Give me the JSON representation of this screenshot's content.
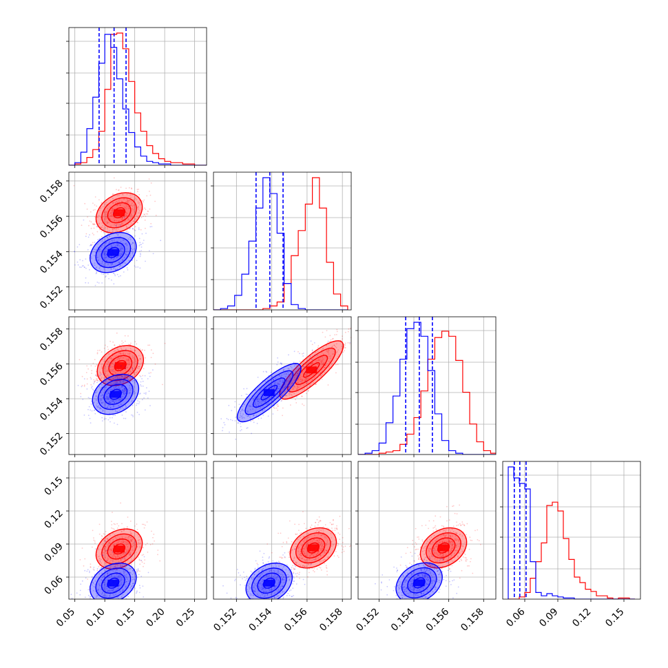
{
  "chart_data": {
    "type": "corner",
    "grid": true,
    "colors": {
      "model_a": "#ff0000",
      "model_b": "#0000ff"
    },
    "n_params": 4,
    "params": [
      {
        "range": [
          0.04,
          0.27
        ],
        "ticks": [
          0.05,
          0.1,
          0.15,
          0.2,
          0.25
        ],
        "tick_labels": [
          "0.05",
          "0.10",
          "0.15",
          "0.20",
          "0.25"
        ]
      },
      {
        "range": [
          0.1507,
          0.1585
        ],
        "ticks": [
          0.152,
          0.154,
          0.156,
          0.158
        ],
        "tick_labels": [
          "0.152",
          "0.154",
          "0.156",
          "0.158"
        ]
      },
      {
        "range": [
          0.1508,
          0.1587
        ],
        "ticks": [
          0.152,
          0.154,
          0.156,
          0.158
        ],
        "tick_labels": [
          "0.152",
          "0.154",
          "0.156",
          "0.158"
        ]
      },
      {
        "range": [
          0.04,
          0.165
        ],
        "ticks": [
          0.06,
          0.09,
          0.12,
          0.15
        ],
        "tick_labels": [
          "0.06",
          "0.09",
          "0.12",
          "0.15"
        ]
      }
    ],
    "series": [
      {
        "color": "#ff0000",
        "histograms": [
          {
            "edges": [
              0.04,
              0.05,
              0.06,
              0.07,
              0.08,
              0.09,
              0.1,
              0.11,
              0.12,
              0.13,
              0.14,
              0.15,
              0.16,
              0.17,
              0.18,
              0.19,
              0.2,
              0.21,
              0.22,
              0.23,
              0.24,
              0.25,
              0.26,
              0.27
            ],
            "counts": [
              0,
              1,
              2,
              6,
              12,
              26,
              58,
              100,
              101,
              89,
              64,
              40,
              26,
              15,
              9,
              5,
              3,
              2,
              2,
              1,
              1,
              0,
              0
            ]
          },
          {
            "edges": [
              0.1507,
              0.1511,
              0.1515,
              0.1519,
              0.1523,
              0.1527,
              0.1531,
              0.1535,
              0.1539,
              0.1543,
              0.1547,
              0.1551,
              0.1555,
              0.1559,
              0.1563,
              0.1567,
              0.1571,
              0.1575,
              0.1579,
              0.1583
            ],
            "counts": [
              0,
              0,
              0,
              0,
              0,
              0,
              0,
              1,
              3,
              6,
              20,
              41,
              60,
              80,
              100,
              77,
              36,
              12,
              3
            ]
          },
          {
            "edges": [
              0.1508,
              0.1512,
              0.1516,
              0.152,
              0.1524,
              0.1528,
              0.1532,
              0.1536,
              0.154,
              0.1544,
              0.1548,
              0.1552,
              0.1556,
              0.156,
              0.1564,
              0.1568,
              0.1572,
              0.1576,
              0.158,
              0.1584,
              0.1588
            ],
            "counts": [
              0,
              0,
              0,
              1,
              2,
              3,
              8,
              16,
              29,
              50,
              75,
              92,
              97,
              93,
              74,
              49,
              24,
              10,
              3,
              1
            ]
          },
          {
            "edges": [
              0.045,
              0.05,
              0.055,
              0.06,
              0.065,
              0.07,
              0.075,
              0.08,
              0.085,
              0.09,
              0.095,
              0.1,
              0.105,
              0.11,
              0.115,
              0.12,
              0.125,
              0.13,
              0.135,
              0.14,
              0.145,
              0.15,
              0.155,
              0.16
            ],
            "counts": [
              0,
              0,
              2,
              6,
              19,
              34,
              51,
              85,
              88,
              80,
              55,
              36,
              20,
              15,
              9,
              7,
              3,
              3,
              1,
              0,
              1,
              1,
              0
            ]
          }
        ],
        "contours": [
          {
            "x": 1,
            "y": 0,
            "cx": 0.124,
            "cy": 0.1562,
            "r_inner": 0.26,
            "r_outer": 0.9
          },
          {
            "x": 2,
            "y": 0,
            "cx": 0.126,
            "cy": 0.1559,
            "r_inner": 0.26,
            "r_outer": 0.9
          },
          {
            "x": 2,
            "y": 1,
            "cx": 0.15625,
            "cy": 0.15565,
            "r_inner": 0.2,
            "r_outer": 0.9
          },
          {
            "x": 3,
            "y": 0,
            "cx": 0.124,
            "cy": 0.0855,
            "r_inner": 0.26,
            "r_outer": 0.9
          },
          {
            "x": 3,
            "y": 1,
            "cx": 0.15635,
            "cy": 0.0865,
            "r_inner": 0.26,
            "r_outer": 0.9
          },
          {
            "x": 3,
            "y": 2,
            "cx": 0.1557,
            "cy": 0.0865,
            "r_inner": 0.26,
            "r_outer": 0.9
          }
        ]
      },
      {
        "color": "#0000ff",
        "histograms": [
          {
            "edges": [
              0.04,
              0.05,
              0.06,
              0.07,
              0.08,
              0.09,
              0.1,
              0.11,
              0.12,
              0.13,
              0.14,
              0.15,
              0.16,
              0.17,
              0.18,
              0.19,
              0.2,
              0.21,
              0.22,
              0.23,
              0.24,
              0.25,
              0.26,
              0.27
            ],
            "counts": [
              0,
              2,
              10,
              28,
              52,
              78,
              100,
              90,
              66,
              43,
              25,
              14,
              7,
              3,
              2,
              1,
              1,
              0,
              0,
              0,
              0,
              0,
              0
            ]
          },
          {
            "edges": [
              0.1507,
              0.1511,
              0.1515,
              0.1519,
              0.1523,
              0.1527,
              0.1531,
              0.1535,
              0.1539,
              0.1543,
              0.1547,
              0.1551,
              0.1555,
              0.1559,
              0.1563,
              0.1567,
              0.1571,
              0.1575,
              0.1579,
              0.1583
            ],
            "counts": [
              0,
              1,
              3,
              11,
              27,
              52,
              77,
              100,
              88,
              58,
              20,
              4,
              1,
              0,
              0,
              0,
              0,
              0,
              0
            ]
          },
          {
            "edges": [
              0.1508,
              0.1512,
              0.1516,
              0.152,
              0.1524,
              0.1528,
              0.1532,
              0.1536,
              0.154,
              0.1544,
              0.1548,
              0.1552,
              0.1556,
              0.156,
              0.1564,
              0.1568,
              0.1572,
              0.1576,
              0.158,
              0.1584,
              0.1588
            ],
            "counts": [
              0,
              1,
              3,
              9,
              25,
              46,
              75,
              99,
              104,
              93,
              66,
              32,
              11,
              3,
              1,
              0,
              0,
              0,
              0,
              0
            ]
          },
          {
            "edges": [
              0.045,
              0.05,
              0.055,
              0.06,
              0.065,
              0.07,
              0.075,
              0.08,
              0.085,
              0.09,
              0.095,
              0.1,
              0.105,
              0.11,
              0.115,
              0.12,
              0.125,
              0.13,
              0.135,
              0.14,
              0.145,
              0.15,
              0.155,
              0.16
            ],
            "counts": [
              120,
              110,
              105,
              100,
              34,
              6,
              3,
              5,
              3,
              2,
              1,
              1,
              0,
              0,
              0,
              0,
              0,
              0,
              0,
              0,
              0,
              0,
              0
            ]
          }
        ],
        "quantiles": [
          [
            0.0905,
            0.1155,
            0.1355
          ],
          [
            0.15311,
            0.15389,
            0.15464
          ],
          [
            0.15353,
            0.15431,
            0.15506
          ],
          [
            0.0505,
            0.0555,
            0.0612
          ]
        ],
        "contours": [
          {
            "x": 1,
            "y": 0,
            "cx": 0.114,
            "cy": 0.15395,
            "r_inner": 0.26,
            "r_outer": 0.9
          },
          {
            "x": 2,
            "y": 0,
            "cx": 0.118,
            "cy": 0.15425,
            "r_inner": 0.26,
            "r_outer": 0.9
          },
          {
            "x": 2,
            "y": 1,
            "cx": 0.15385,
            "cy": 0.15435,
            "r_inner": 0.2,
            "r_outer": 0.9
          },
          {
            "x": 3,
            "y": 0,
            "cx": 0.114,
            "cy": 0.0545,
            "r_inner": 0.26,
            "r_outer": 0.9
          },
          {
            "x": 3,
            "y": 1,
            "cx": 0.15385,
            "cy": 0.0545,
            "r_inner": 0.26,
            "r_outer": 0.9
          },
          {
            "x": 3,
            "y": 2,
            "cx": 0.1543,
            "cy": 0.0548,
            "r_inner": 0.26,
            "r_outer": 0.9
          }
        ]
      }
    ]
  }
}
